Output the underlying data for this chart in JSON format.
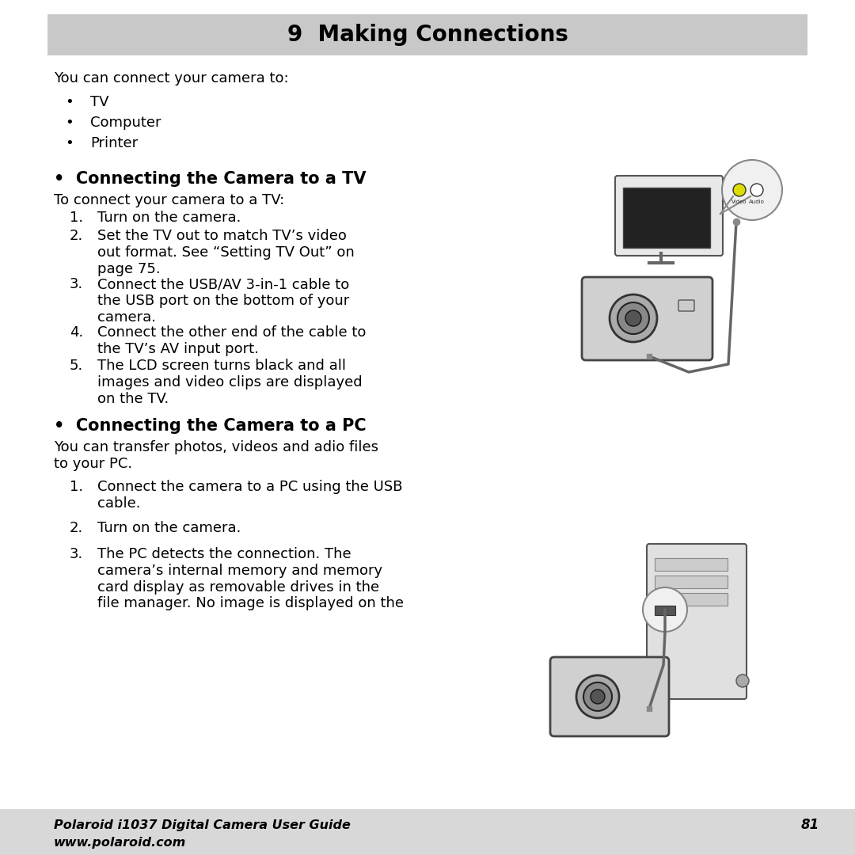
{
  "title": "9  Making Connections",
  "title_bg": "#c8c8c8",
  "bg_color": "#ffffff",
  "footer_bg": "#d8d8d8",
  "footer_line1": "Polaroid i1037 Digital Camera User Guide",
  "footer_line2": "www.polaroid.com",
  "footer_page": "81",
  "intro_text": "You can connect your camera to:",
  "bullets": [
    "TV",
    "Computer",
    "Printer"
  ],
  "section1_title": "•  Connecting the Camera to a TV",
  "section1_intro": "To connect your camera to a TV:",
  "section1_steps": [
    "Turn on the camera.",
    "Set the TV out to match TV’s video\nout format. See “Setting TV Out” on\npage 75.",
    "Connect the USB/AV 3-in-1 cable to\nthe USB port on the bottom of your\ncamera.",
    "Connect the other end of the cable to\nthe TV’s AV input port.",
    "The LCD screen turns black and all\nimages and video clips are displayed\non the TV."
  ],
  "section2_title": "•  Connecting the Camera to a PC",
  "section2_intro": "You can transfer photos, videos and adio files\nto your PC.",
  "section2_steps": [
    "Connect the camera to a PC using the USB\ncable.",
    "Turn on the camera.",
    "The PC detects the connection. The\ncamera’s internal memory and memory\ncard display as removable drives in the\nfile manager. No image is displayed on the"
  ]
}
